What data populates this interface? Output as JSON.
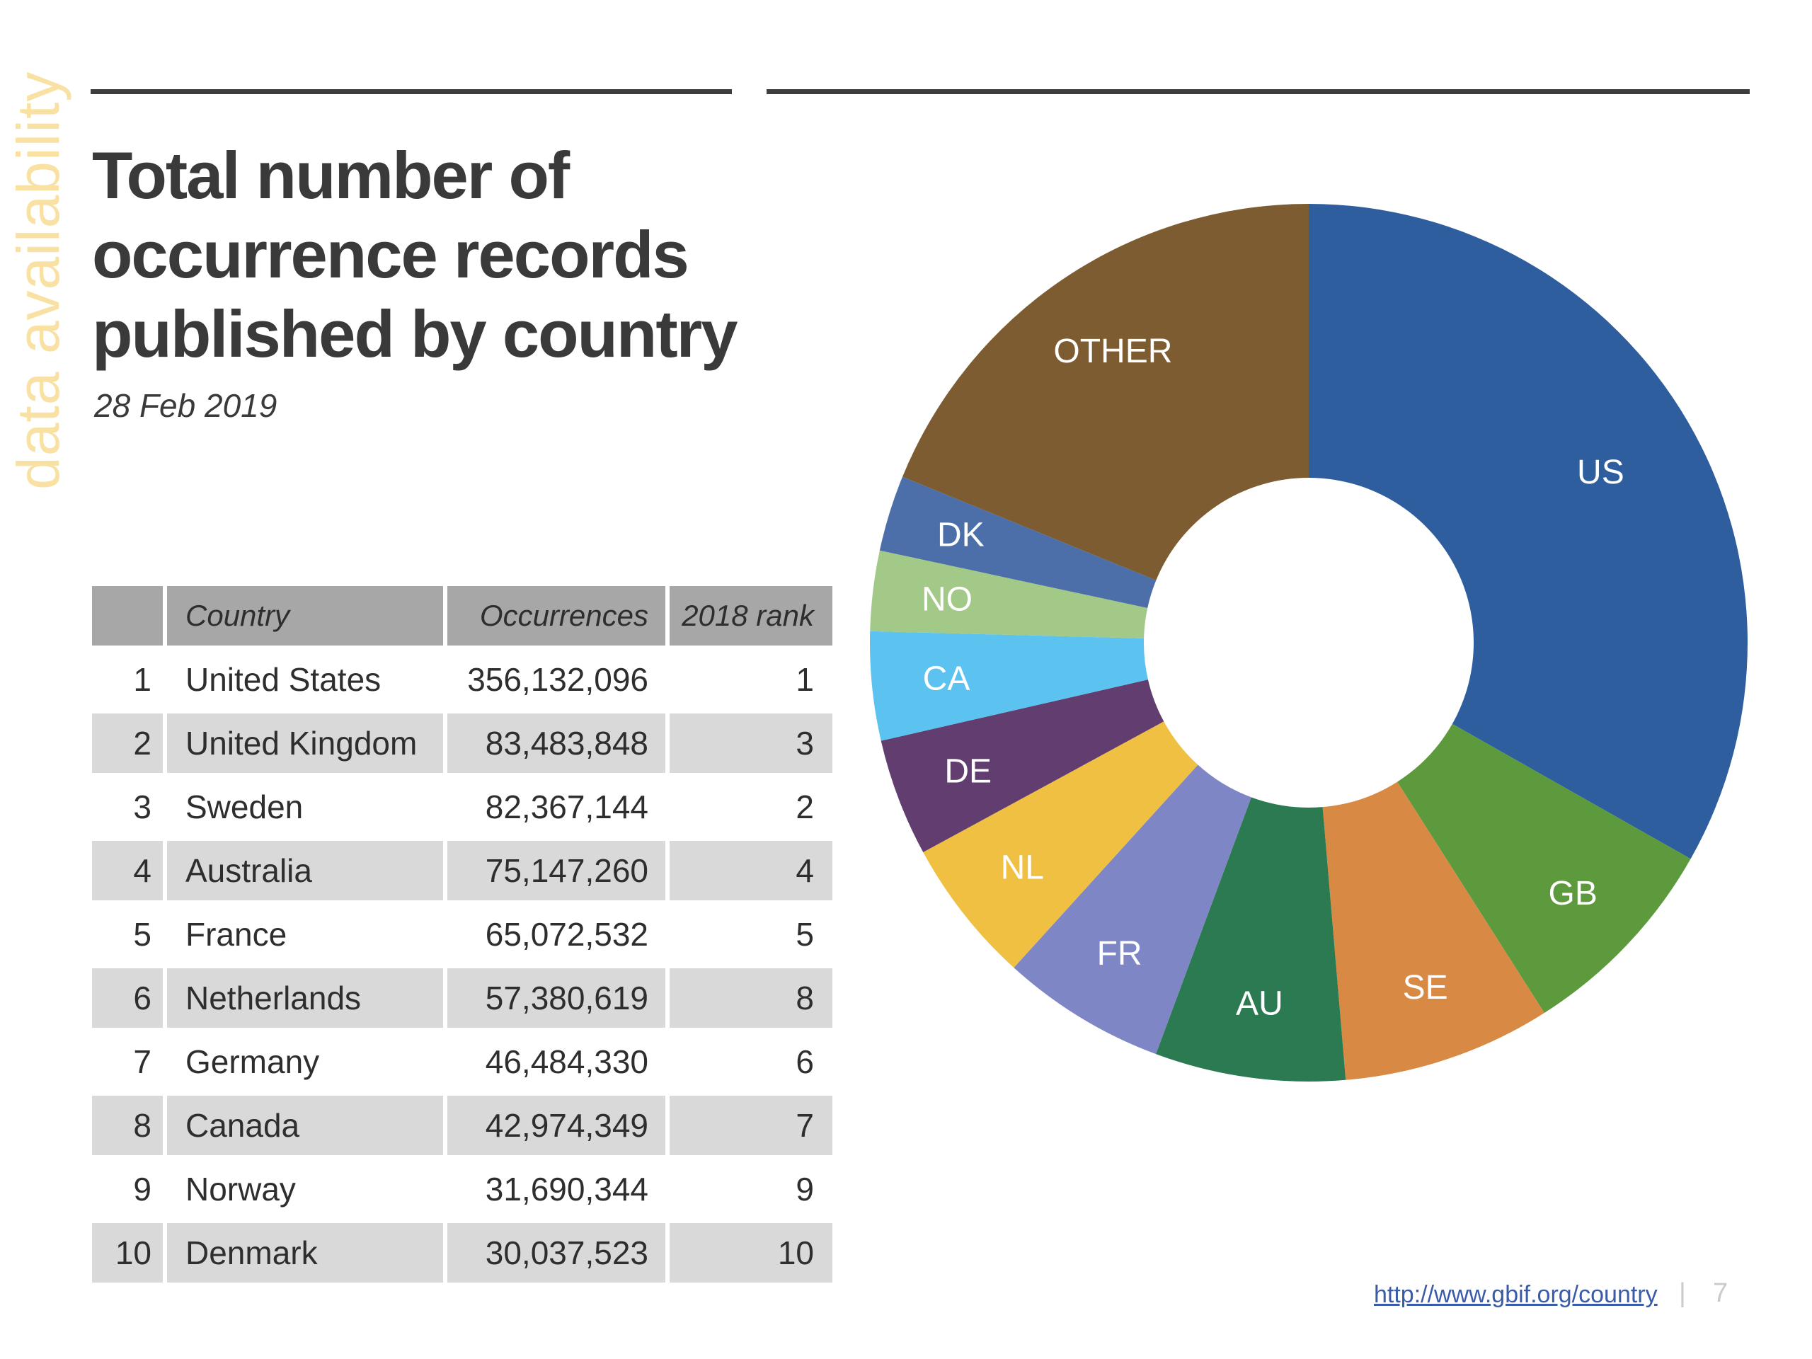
{
  "watermark": {
    "text": "data availability",
    "color": "#F8E1A3"
  },
  "header": {
    "title_lines": [
      "Total number of",
      "occurrence records",
      "published by country"
    ],
    "date": "28 Feb 2019"
  },
  "table": {
    "columns": [
      "",
      "Country",
      "Occurrences",
      "2018 rank"
    ],
    "rows": [
      [
        "1",
        "United States",
        "356,132,096",
        "1"
      ],
      [
        "2",
        "United Kingdom",
        "83,483,848",
        "3"
      ],
      [
        "3",
        "Sweden",
        "82,367,144",
        "2"
      ],
      [
        "4",
        "Australia",
        "75,147,260",
        "4"
      ],
      [
        "5",
        "France",
        "65,072,532",
        "5"
      ],
      [
        "6",
        "Netherlands",
        "57,380,619",
        "8"
      ],
      [
        "7",
        "Germany",
        "46,484,330",
        "6"
      ],
      [
        "8",
        "Canada",
        "42,974,349",
        "7"
      ],
      [
        "9",
        "Norway",
        "31,690,344",
        "9"
      ],
      [
        "10",
        "Denmark",
        "30,037,523",
        "10"
      ]
    ],
    "header_bg": "#A7A7A7",
    "stripe_bg": "#D9D9D9"
  },
  "chart_data": {
    "type": "pie",
    "subtype": "donut",
    "title": "Occurrence records published by country (share of total)",
    "direction": "clockwise",
    "start_angle_deg": 0,
    "inner_radius_ratio": 0.375,
    "label_color": "#FFFFFF",
    "slices": [
      {
        "label": "US",
        "value": 356132096,
        "color": "#2E5E9E"
      },
      {
        "label": "GB",
        "value": 83483848,
        "color": "#5C9A3D"
      },
      {
        "label": "SE",
        "value": 82367144,
        "color": "#D88943"
      },
      {
        "label": "AU",
        "value": 75147260,
        "color": "#2C7A52"
      },
      {
        "label": "FR",
        "value": 65072532,
        "color": "#7F86C5"
      },
      {
        "label": "NL",
        "value": 57380619,
        "color": "#EFC042"
      },
      {
        "label": "DE",
        "value": 46484330,
        "color": "#613D70"
      },
      {
        "label": "CA",
        "value": 42974349,
        "color": "#5CC2EF"
      },
      {
        "label": "NO",
        "value": 31690344,
        "color": "#A2C987"
      },
      {
        "label": "DK",
        "value": 30037523,
        "color": "#4C6FA9"
      },
      {
        "label": "OTHER",
        "value": 202000000,
        "color": "#7C5C30",
        "estimated": true
      }
    ]
  },
  "footer": {
    "link": "http://www.gbif.org/country",
    "separator": "|",
    "page": "7"
  }
}
